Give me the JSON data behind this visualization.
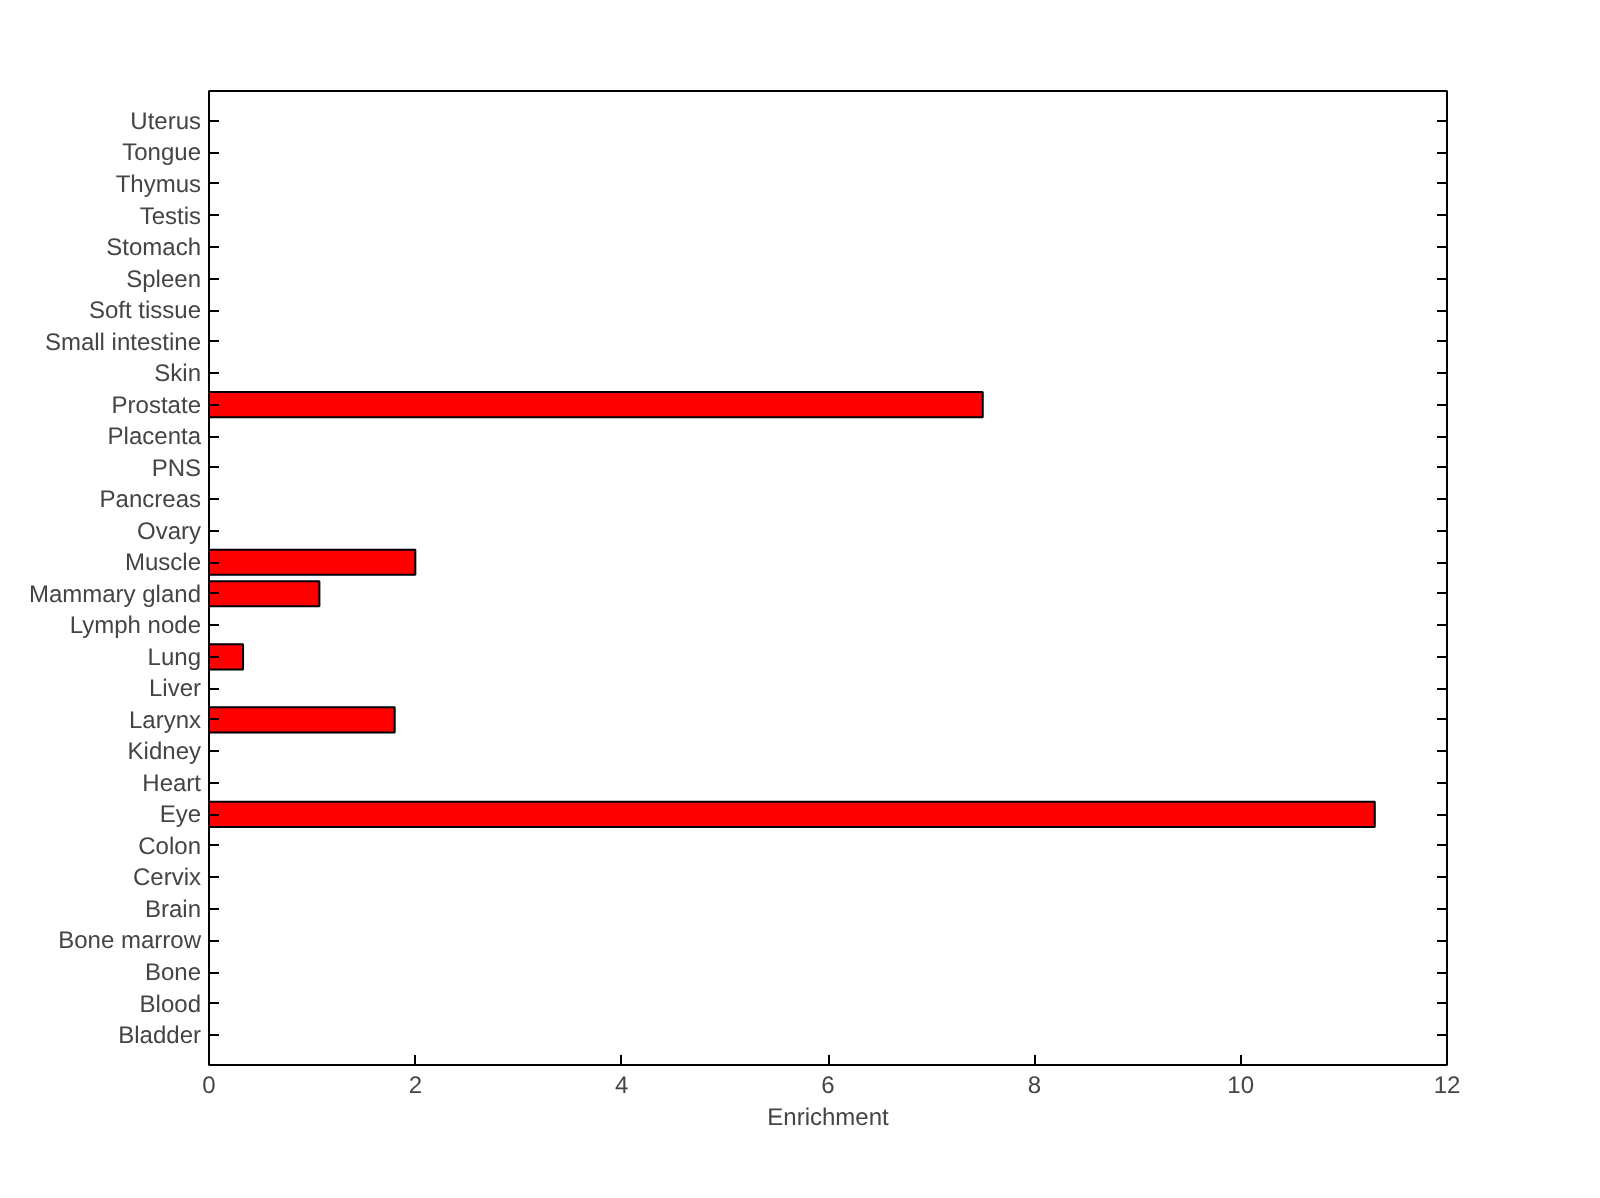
{
  "chart_data": {
    "type": "bar",
    "orientation": "horizontal",
    "xlabel": "Enrichment",
    "categories": [
      "Uterus",
      "Tongue",
      "Thymus",
      "Testis",
      "Stomach",
      "Spleen",
      "Soft tissue",
      "Small intestine",
      "Skin",
      "Prostate",
      "Placenta",
      "PNS",
      "Pancreas",
      "Ovary",
      "Muscle",
      "Mammary gland",
      "Lymph node",
      "Lung",
      "Liver",
      "Larynx",
      "Kidney",
      "Heart",
      "Eye",
      "Colon",
      "Cervix",
      "Brain",
      "Bone marrow",
      "Bone",
      "Blood",
      "Bladder"
    ],
    "values": [
      0,
      0,
      0,
      0,
      0,
      0,
      0,
      0,
      0,
      7.5,
      0,
      0,
      0,
      0,
      2.0,
      1.07,
      0,
      0.33,
      0,
      1.8,
      0,
      0,
      11.3,
      0,
      0,
      0,
      0,
      0,
      0,
      0
    ],
    "color": "#ff0000",
    "xlim": [
      0,
      12
    ],
    "xticks": [
      0,
      2,
      4,
      6,
      8,
      10,
      12
    ],
    "grid": false
  }
}
